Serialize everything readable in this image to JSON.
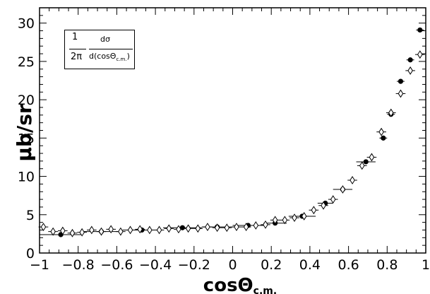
{
  "chart_data": {
    "type": "scatter",
    "title": "",
    "xlabel": "cosΘ",
    "xlabel_sub": "c.m.",
    "ylabel": "μb/sr",
    "xlim": [
      -1,
      1
    ],
    "ylim": [
      0,
      32
    ],
    "x_ticks": [
      "−1",
      "−0.8",
      "−0.6",
      "−0.4",
      "−0.2",
      "0",
      "0.2",
      "0.4",
      "0.6",
      "0.8",
      "1"
    ],
    "y_ticks": [
      "0",
      "5",
      "10",
      "15",
      "20",
      "25",
      "30"
    ],
    "annotation": {
      "num1": "1",
      "den1": "2π",
      "num2": "dσ",
      "den2": "d(cosΘ",
      "den2_sub": "c.m.",
      "den2_close": ")"
    },
    "series": [
      {
        "marker": "filled-circle",
        "x": [
          -0.89,
          -0.68,
          -0.47,
          -0.26,
          -0.08,
          0.08,
          0.22,
          0.36,
          0.48,
          0.57,
          0.69,
          0.78,
          0.82,
          0.87,
          0.92,
          0.97
        ],
        "y": [
          2.4,
          2.8,
          3.0,
          3.3,
          3.4,
          3.6,
          3.9,
          4.8,
          6.5,
          8.3,
          11.9,
          15.0,
          18.1,
          22.4,
          25.2,
          29.1
        ],
        "xerr": [
          0.11,
          0.1,
          0.1,
          0.1,
          0.08,
          0.08,
          0.06,
          0.07,
          0.04,
          0.05,
          0.05,
          0.02,
          0.02,
          0.02,
          0.02,
          0.02
        ]
      },
      {
        "marker": "open-diamond",
        "x": [
          -0.98,
          -0.93,
          -0.88,
          -0.83,
          -0.78,
          -0.73,
          -0.68,
          -0.63,
          -0.58,
          -0.53,
          -0.48,
          -0.43,
          -0.38,
          -0.33,
          -0.28,
          -0.23,
          -0.18,
          -0.13,
          -0.08,
          -0.03,
          0.02,
          0.07,
          0.12,
          0.17,
          0.22,
          0.27,
          0.32,
          0.37,
          0.42,
          0.47,
          0.52,
          0.57,
          0.62,
          0.67,
          0.72,
          0.77,
          0.82,
          0.87,
          0.92,
          0.97
        ],
        "y": [
          3.4,
          2.8,
          2.9,
          2.6,
          2.7,
          3.0,
          2.8,
          3.1,
          2.8,
          3.0,
          3.1,
          3.0,
          3.0,
          3.2,
          3.1,
          3.2,
          3.2,
          3.4,
          3.3,
          3.3,
          3.4,
          3.4,
          3.6,
          3.7,
          4.3,
          4.3,
          4.6,
          4.8,
          5.6,
          6.2,
          7.0,
          8.3,
          9.5,
          11.4,
          12.5,
          15.8,
          18.3,
          20.8,
          23.8,
          25.9
        ],
        "xerr": [
          0.025,
          0.025,
          0.025,
          0.025,
          0.025,
          0.025,
          0.025,
          0.025,
          0.025,
          0.025,
          0.025,
          0.025,
          0.025,
          0.025,
          0.025,
          0.025,
          0.025,
          0.025,
          0.025,
          0.025,
          0.025,
          0.025,
          0.025,
          0.025,
          0.025,
          0.025,
          0.025,
          0.025,
          0.025,
          0.025,
          0.025,
          0.025,
          0.025,
          0.025,
          0.025,
          0.025,
          0.025,
          0.025,
          0.025,
          0.025
        ]
      }
    ]
  }
}
